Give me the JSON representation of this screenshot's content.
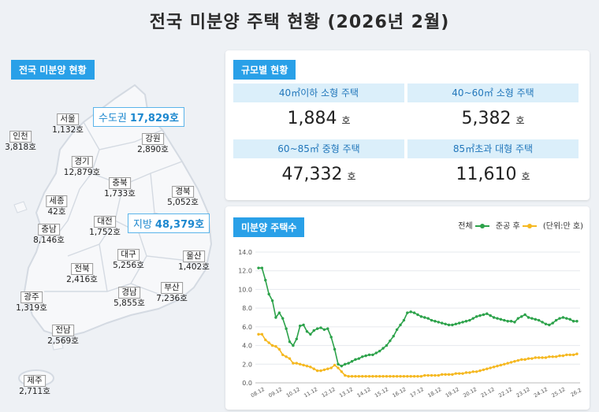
{
  "title": "전국 미분양 주택 현황  (2026년 2월)",
  "map": {
    "tag": "전국 미분양 현황",
    "regions": [
      {
        "name": "서울",
        "value": "1,132호"
      },
      {
        "name": "인천",
        "value": "3,818호"
      },
      {
        "name": "경기",
        "value": "12,879호"
      },
      {
        "name": "강원",
        "value": "2,890호"
      },
      {
        "name": "충북",
        "value": "1,733호"
      },
      {
        "name": "세종",
        "value": "42호"
      },
      {
        "name": "경북",
        "value": "5,052호"
      },
      {
        "name": "충남",
        "value": "8,146호"
      },
      {
        "name": "대전",
        "value": "1,752호"
      },
      {
        "name": "대구",
        "value": "5,256호"
      },
      {
        "name": "울산",
        "value": "1,402호"
      },
      {
        "name": "전북",
        "value": "2,416호"
      },
      {
        "name": "경남",
        "value": "5,855호"
      },
      {
        "name": "부산",
        "value": "7,236호"
      },
      {
        "name": "광주",
        "value": "1,319호"
      },
      {
        "name": "전남",
        "value": "2,569호"
      },
      {
        "name": "제주",
        "value": "2,711호"
      }
    ],
    "capital": {
      "label": "수도권",
      "value": "17,829호"
    },
    "local": {
      "label": "지방",
      "value": "48,379호"
    }
  },
  "size": {
    "tag": "규모별 현황",
    "unit": "호",
    "items": [
      {
        "label": "40㎡이하 소형 주택",
        "value": "1,884"
      },
      {
        "label": "40~60㎡ 소형 주택",
        "value": "5,382"
      },
      {
        "label": "60~85㎡ 중형 주택",
        "value": "47,332"
      },
      {
        "label": "85㎡초과 대형 주택",
        "value": "11,610"
      }
    ]
  },
  "chart_tag": "미분양 주택수",
  "legend": {
    "total": "전체",
    "completed": "준공 후",
    "unit": "(단위:만 호)"
  },
  "colors": {
    "accent": "#29a0e8",
    "total": "#2ca24a",
    "completed": "#f5b820"
  },
  "chart_data": {
    "type": "line",
    "ylim": [
      0,
      14
    ],
    "yticks": [
      "0.0",
      "2.0",
      "4.0",
      "6.0",
      "8.0",
      "10.0",
      "12.0",
      "14.0"
    ],
    "xticks": [
      "08.12",
      "09.12",
      "10.12",
      "11.12",
      "12.12",
      "13.12",
      "14.12",
      "15.12",
      "16.12",
      "17.12",
      "18.12",
      "19.12",
      "20.12",
      "21.12",
      "22.12",
      "23.12",
      "24.12",
      "25.12",
      "26.2"
    ],
    "series": [
      {
        "name": "전체",
        "values": [
          12.3,
          12.3,
          11.0,
          9.5,
          8.8,
          7.0,
          7.5,
          6.9,
          5.8,
          4.4,
          4.0,
          4.7,
          6.1,
          6.2,
          5.5,
          5.2,
          5.6,
          5.8,
          5.9,
          5.7,
          5.8,
          4.9,
          3.6,
          2.0,
          1.8,
          2.0,
          2.1,
          2.3,
          2.5,
          2.6,
          2.8,
          2.9,
          3.0,
          3.0,
          3.2,
          3.4,
          3.7,
          4.0,
          4.5,
          5.0,
          5.7,
          6.2,
          6.7,
          7.5,
          7.6,
          7.5,
          7.3,
          7.1,
          7.0,
          6.9,
          6.7,
          6.6,
          6.5,
          6.4,
          6.3,
          6.2,
          6.2,
          6.3,
          6.4,
          6.5,
          6.6,
          6.7,
          6.9,
          7.1,
          7.2,
          7.3,
          7.4,
          7.2,
          7.0,
          6.9,
          6.8,
          6.7,
          6.6,
          6.6,
          6.5,
          6.9,
          7.1,
          7.3,
          7.0,
          6.9,
          6.8,
          6.7,
          6.5,
          6.3,
          6.2,
          6.4,
          6.7,
          6.9,
          7.0,
          6.9,
          6.8,
          6.6,
          6.6
        ]
      },
      {
        "name": "준공 후",
        "values": [
          5.2,
          5.2,
          4.6,
          4.3,
          4.0,
          3.9,
          3.6,
          3.0,
          2.8,
          2.6,
          2.1,
          2.1,
          2.0,
          1.9,
          1.8,
          1.7,
          1.5,
          1.3,
          1.3,
          1.4,
          1.5,
          1.6,
          1.9,
          1.6,
          1.2,
          0.8,
          0.7,
          0.7,
          0.7,
          0.7,
          0.7,
          0.7,
          0.7,
          0.7,
          0.7,
          0.7,
          0.7,
          0.7,
          0.7,
          0.7,
          0.7,
          0.7,
          0.7,
          0.7,
          0.7,
          0.7,
          0.7,
          0.7,
          0.8,
          0.8,
          0.8,
          0.8,
          0.8,
          0.9,
          0.9,
          0.9,
          0.9,
          1.0,
          1.0,
          1.0,
          1.1,
          1.1,
          1.2,
          1.2,
          1.3,
          1.4,
          1.5,
          1.6,
          1.7,
          1.8,
          1.9,
          2.0,
          2.1,
          2.2,
          2.3,
          2.4,
          2.5,
          2.5,
          2.6,
          2.6,
          2.7,
          2.7,
          2.7,
          2.7,
          2.8,
          2.8,
          2.8,
          2.9,
          2.9,
          3.0,
          3.0,
          3.0,
          3.1
        ]
      }
    ]
  }
}
